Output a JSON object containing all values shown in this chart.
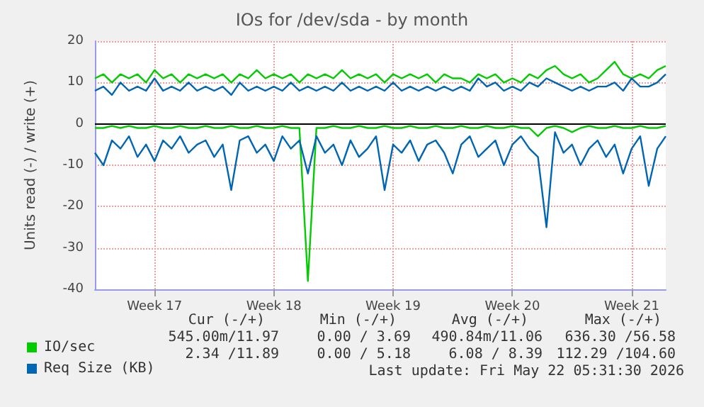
{
  "chart_data": {
    "type": "line",
    "title": "IOs for /dev/sda - by month",
    "ylabel": "Units read (-) / write (+)",
    "categories": [
      null,
      null,
      null,
      null,
      null,
      null,
      null,
      "Week 17",
      null,
      null,
      null,
      null,
      null,
      null,
      null,
      null,
      null,
      null,
      null,
      null,
      null,
      "Week 18",
      null,
      null,
      null,
      null,
      null,
      null,
      null,
      null,
      null,
      null,
      null,
      null,
      null,
      "Week 19",
      null,
      null,
      null,
      null,
      null,
      null,
      null,
      null,
      null,
      null,
      null,
      null,
      null,
      "Week 20",
      null,
      null,
      null,
      null,
      null,
      null,
      null,
      null,
      null,
      null,
      null,
      null,
      null,
      "Week 21",
      null,
      null,
      null,
      null
    ],
    "series": [
      {
        "name": "IO/sec",
        "color": "#00cc00",
        "values": [
          11,
          12,
          10,
          12,
          11,
          12,
          10,
          13,
          11,
          12,
          10,
          12,
          11,
          12,
          11,
          12,
          10,
          12,
          11,
          13,
          11,
          12,
          11,
          12,
          10,
          12,
          11,
          12,
          11,
          13,
          11,
          12,
          11,
          12,
          10,
          12,
          11,
          12,
          11,
          12,
          10,
          12,
          11,
          11,
          10,
          12,
          11,
          12,
          10,
          11,
          10,
          12,
          11,
          13,
          14,
          12,
          11,
          12,
          10,
          11,
          13,
          15,
          12,
          11,
          12,
          11,
          13,
          14
        ]
      },
      {
        "color": "#00cc00",
        "values": [
          -1,
          -1,
          -0.5,
          -1,
          -0.5,
          -1,
          -1,
          -0.5,
          -1,
          -1,
          -0.5,
          -1,
          -1,
          -0.5,
          -1,
          -1,
          -0.5,
          -1,
          -1,
          -0.5,
          -1,
          -1,
          -0.5,
          -1,
          -1,
          -38,
          -1,
          -1,
          -0.5,
          -1,
          -1,
          -0.5,
          -1,
          -1,
          -0.5,
          -1,
          -1,
          -0.5,
          -1,
          -1,
          -0.5,
          -1,
          -1,
          -0.5,
          -1,
          -1,
          -0.5,
          -1,
          -1,
          -0.5,
          -1,
          -1,
          -3,
          -1,
          -0.5,
          -1,
          -2,
          -1,
          -0.5,
          -1,
          -1,
          -0.5,
          -1,
          -1,
          -0.5,
          -1,
          -1,
          -0.5
        ]
      },
      {
        "name": "Req Size (KB)",
        "color": "#0066b3",
        "values": [
          8,
          9,
          7,
          10,
          8,
          9,
          8,
          11,
          8,
          9,
          8,
          10,
          8,
          9,
          8,
          9,
          7,
          10,
          8,
          9,
          8,
          9,
          8,
          10,
          8,
          9,
          8,
          9,
          8,
          10,
          8,
          9,
          8,
          9,
          8,
          10,
          8,
          9,
          8,
          9,
          8,
          9,
          8,
          9,
          8,
          11,
          9,
          10,
          8,
          9,
          8,
          10,
          9,
          11,
          10,
          9,
          8,
          9,
          8,
          9,
          9,
          10,
          8,
          11,
          9,
          9,
          10,
          12
        ]
      },
      {
        "color": "#0066b3",
        "values": [
          -7,
          -10,
          -4,
          -6,
          -3,
          -8,
          -5,
          -9,
          -4,
          -6,
          -3,
          -7,
          -5,
          -4,
          -8,
          -5,
          -16,
          -4,
          -3,
          -7,
          -5,
          -9,
          -3,
          -6,
          -4,
          -12,
          -3,
          -7,
          -5,
          -10,
          -4,
          -8,
          -6,
          -3,
          -16,
          -5,
          -7,
          -4,
          -9,
          -5,
          -4,
          -7,
          -12,
          -5,
          -3,
          -8,
          -6,
          -4,
          -10,
          -5,
          -3,
          -6,
          -8,
          -25,
          -2,
          -7,
          -5,
          -10,
          -6,
          -4,
          -8,
          -5,
          -12,
          -6,
          -3,
          -15,
          -6,
          -3
        ]
      }
    ],
    "ylim": [
      -40,
      20
    ],
    "yticks": [
      -40,
      -30,
      -20,
      -10,
      0,
      10,
      20
    ],
    "ref_lines": [
      {
        "axis": "y",
        "value": 0,
        "color": "#000000"
      }
    ],
    "grid": true,
    "legend": "bottom left",
    "marker": "none",
    "line_style": "solid",
    "annotations": [
      "Cur (-/+)",
      "Min (-/+)",
      "Avg (-/+)",
      "Max (-/+)",
      "545.00m/11.97",
      "0.00 / 3.69",
      "490.84m/11.06",
      "636.30 /56.58",
      "2.34 /11.89",
      "0.00 / 5.18",
      "6.08 / 8.39",
      "112.29 /104.60",
      "Last update: Fri May 22 05:31:30 2026"
    ]
  }
}
